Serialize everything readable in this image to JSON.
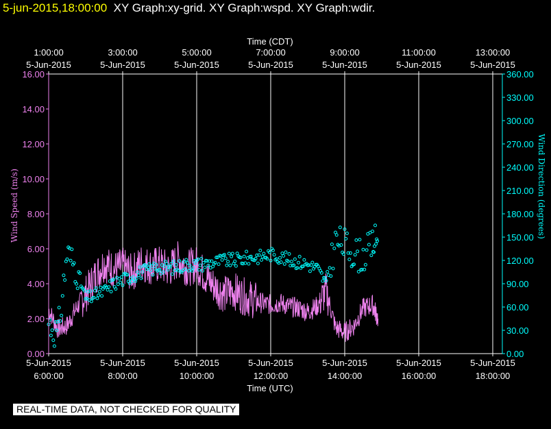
{
  "header": {
    "timestamp": "5-jun-2015,18:00:00",
    "graphs": "XY Graph:xy-grid.  XY Graph:wspd.  XY Graph:wdir."
  },
  "footer": {
    "note": "REAL-TIME DATA, NOT CHECKED FOR QUALITY"
  },
  "colors": {
    "speed": "#ee82ee",
    "direction": "#00ffff",
    "grid": "#ffffff",
    "background": "#000000"
  },
  "chart_data": {
    "type": "scatter",
    "top_axis": {
      "label": "Time (CDT)",
      "ticks": [
        {
          "time": "1:00:00",
          "date": "5-Jun-2015"
        },
        {
          "time": "3:00:00",
          "date": "5-Jun-2015"
        },
        {
          "time": "5:00:00",
          "date": "5-Jun-2015"
        },
        {
          "time": "7:00:00",
          "date": "5-Jun-2015"
        },
        {
          "time": "9:00:00",
          "date": "5-Jun-2015"
        },
        {
          "time": "11:00:00",
          "date": "5-Jun-2015"
        },
        {
          "time": "13:00:00",
          "date": "5-Jun-2015"
        }
      ]
    },
    "bottom_axis": {
      "label": "Time (UTC)",
      "ticks": [
        {
          "date": "5-Jun-2015",
          "time": "6:00:00"
        },
        {
          "date": "5-Jun-2015",
          "time": "8:00:00"
        },
        {
          "date": "5-Jun-2015",
          "time": "10:00:00"
        },
        {
          "date": "5-Jun-2015",
          "time": "12:00:00"
        },
        {
          "date": "5-Jun-2015",
          "time": "14:00:00"
        },
        {
          "date": "5-Jun-2015",
          "time": "16:00:00"
        },
        {
          "date": "5-Jun-2015",
          "time": "18:00:00"
        }
      ],
      "range_utc_hours": [
        6,
        18
      ]
    },
    "left_axis": {
      "label": "Wind Speed (m/s)",
      "range": [
        0,
        16
      ],
      "ticks": [
        "0.00",
        "2.00",
        "4.00",
        "6.00",
        "8.00",
        "10.00",
        "12.00",
        "14.00",
        "16.00"
      ]
    },
    "right_axis": {
      "label": "Wind Direction (degrees)",
      "range": [
        0,
        360
      ],
      "ticks": [
        "0.00",
        "30.00",
        "60.00",
        "90.00",
        "120.00",
        "150.00",
        "180.00",
        "210.00",
        "240.00",
        "270.00",
        "300.00",
        "330.00",
        "360.00"
      ]
    },
    "grid": "vertical",
    "series": [
      {
        "name": "wspd",
        "axis": "left",
        "style": "line",
        "x_utc_hours": [
          6.0,
          6.25,
          6.5,
          6.75,
          7.0,
          7.25,
          7.5,
          7.75,
          8.0,
          8.25,
          8.5,
          8.75,
          9.0,
          9.25,
          9.5,
          9.75,
          10.0,
          10.25,
          10.5,
          10.75,
          11.0,
          11.25,
          11.5,
          11.75,
          12.0,
          12.25,
          12.5,
          12.75,
          13.0,
          13.25,
          13.5,
          13.75,
          14.0,
          14.25,
          14.5,
          14.75,
          14.9
        ],
        "y": [
          2.5,
          1.4,
          1.6,
          2.6,
          3.4,
          4.4,
          5.2,
          4.8,
          5.0,
          4.6,
          5.2,
          5.0,
          5.1,
          4.8,
          5.4,
          4.9,
          5.1,
          4.4,
          3.8,
          3.4,
          3.6,
          3.3,
          3.1,
          2.9,
          2.8,
          2.9,
          2.7,
          2.6,
          2.4,
          2.7,
          3.6,
          1.5,
          1.2,
          1.6,
          2.6,
          2.8,
          2.0
        ]
      },
      {
        "name": "wdir",
        "axis": "right",
        "style": "circles",
        "x_utc_hours": [
          6.0,
          6.25,
          6.5,
          6.75,
          7.0,
          7.25,
          7.5,
          7.75,
          8.0,
          8.25,
          8.5,
          8.75,
          9.0,
          9.25,
          9.5,
          9.75,
          10.0,
          10.25,
          10.5,
          10.75,
          11.0,
          11.25,
          11.5,
          11.75,
          12.0,
          12.25,
          12.5,
          12.75,
          13.0,
          13.25,
          13.5,
          13.75,
          14.0,
          14.25,
          14.5,
          14.75,
          14.9
        ],
        "y": [
          40,
          25,
          130,
          110,
          70,
          75,
          80,
          90,
          95,
          100,
          105,
          108,
          112,
          110,
          112,
          115,
          115,
          116,
          118,
          120,
          120,
          122,
          124,
          125,
          128,
          125,
          120,
          118,
          115,
          110,
          90,
          145,
          140,
          130,
          125,
          140,
          150
        ]
      }
    ]
  }
}
